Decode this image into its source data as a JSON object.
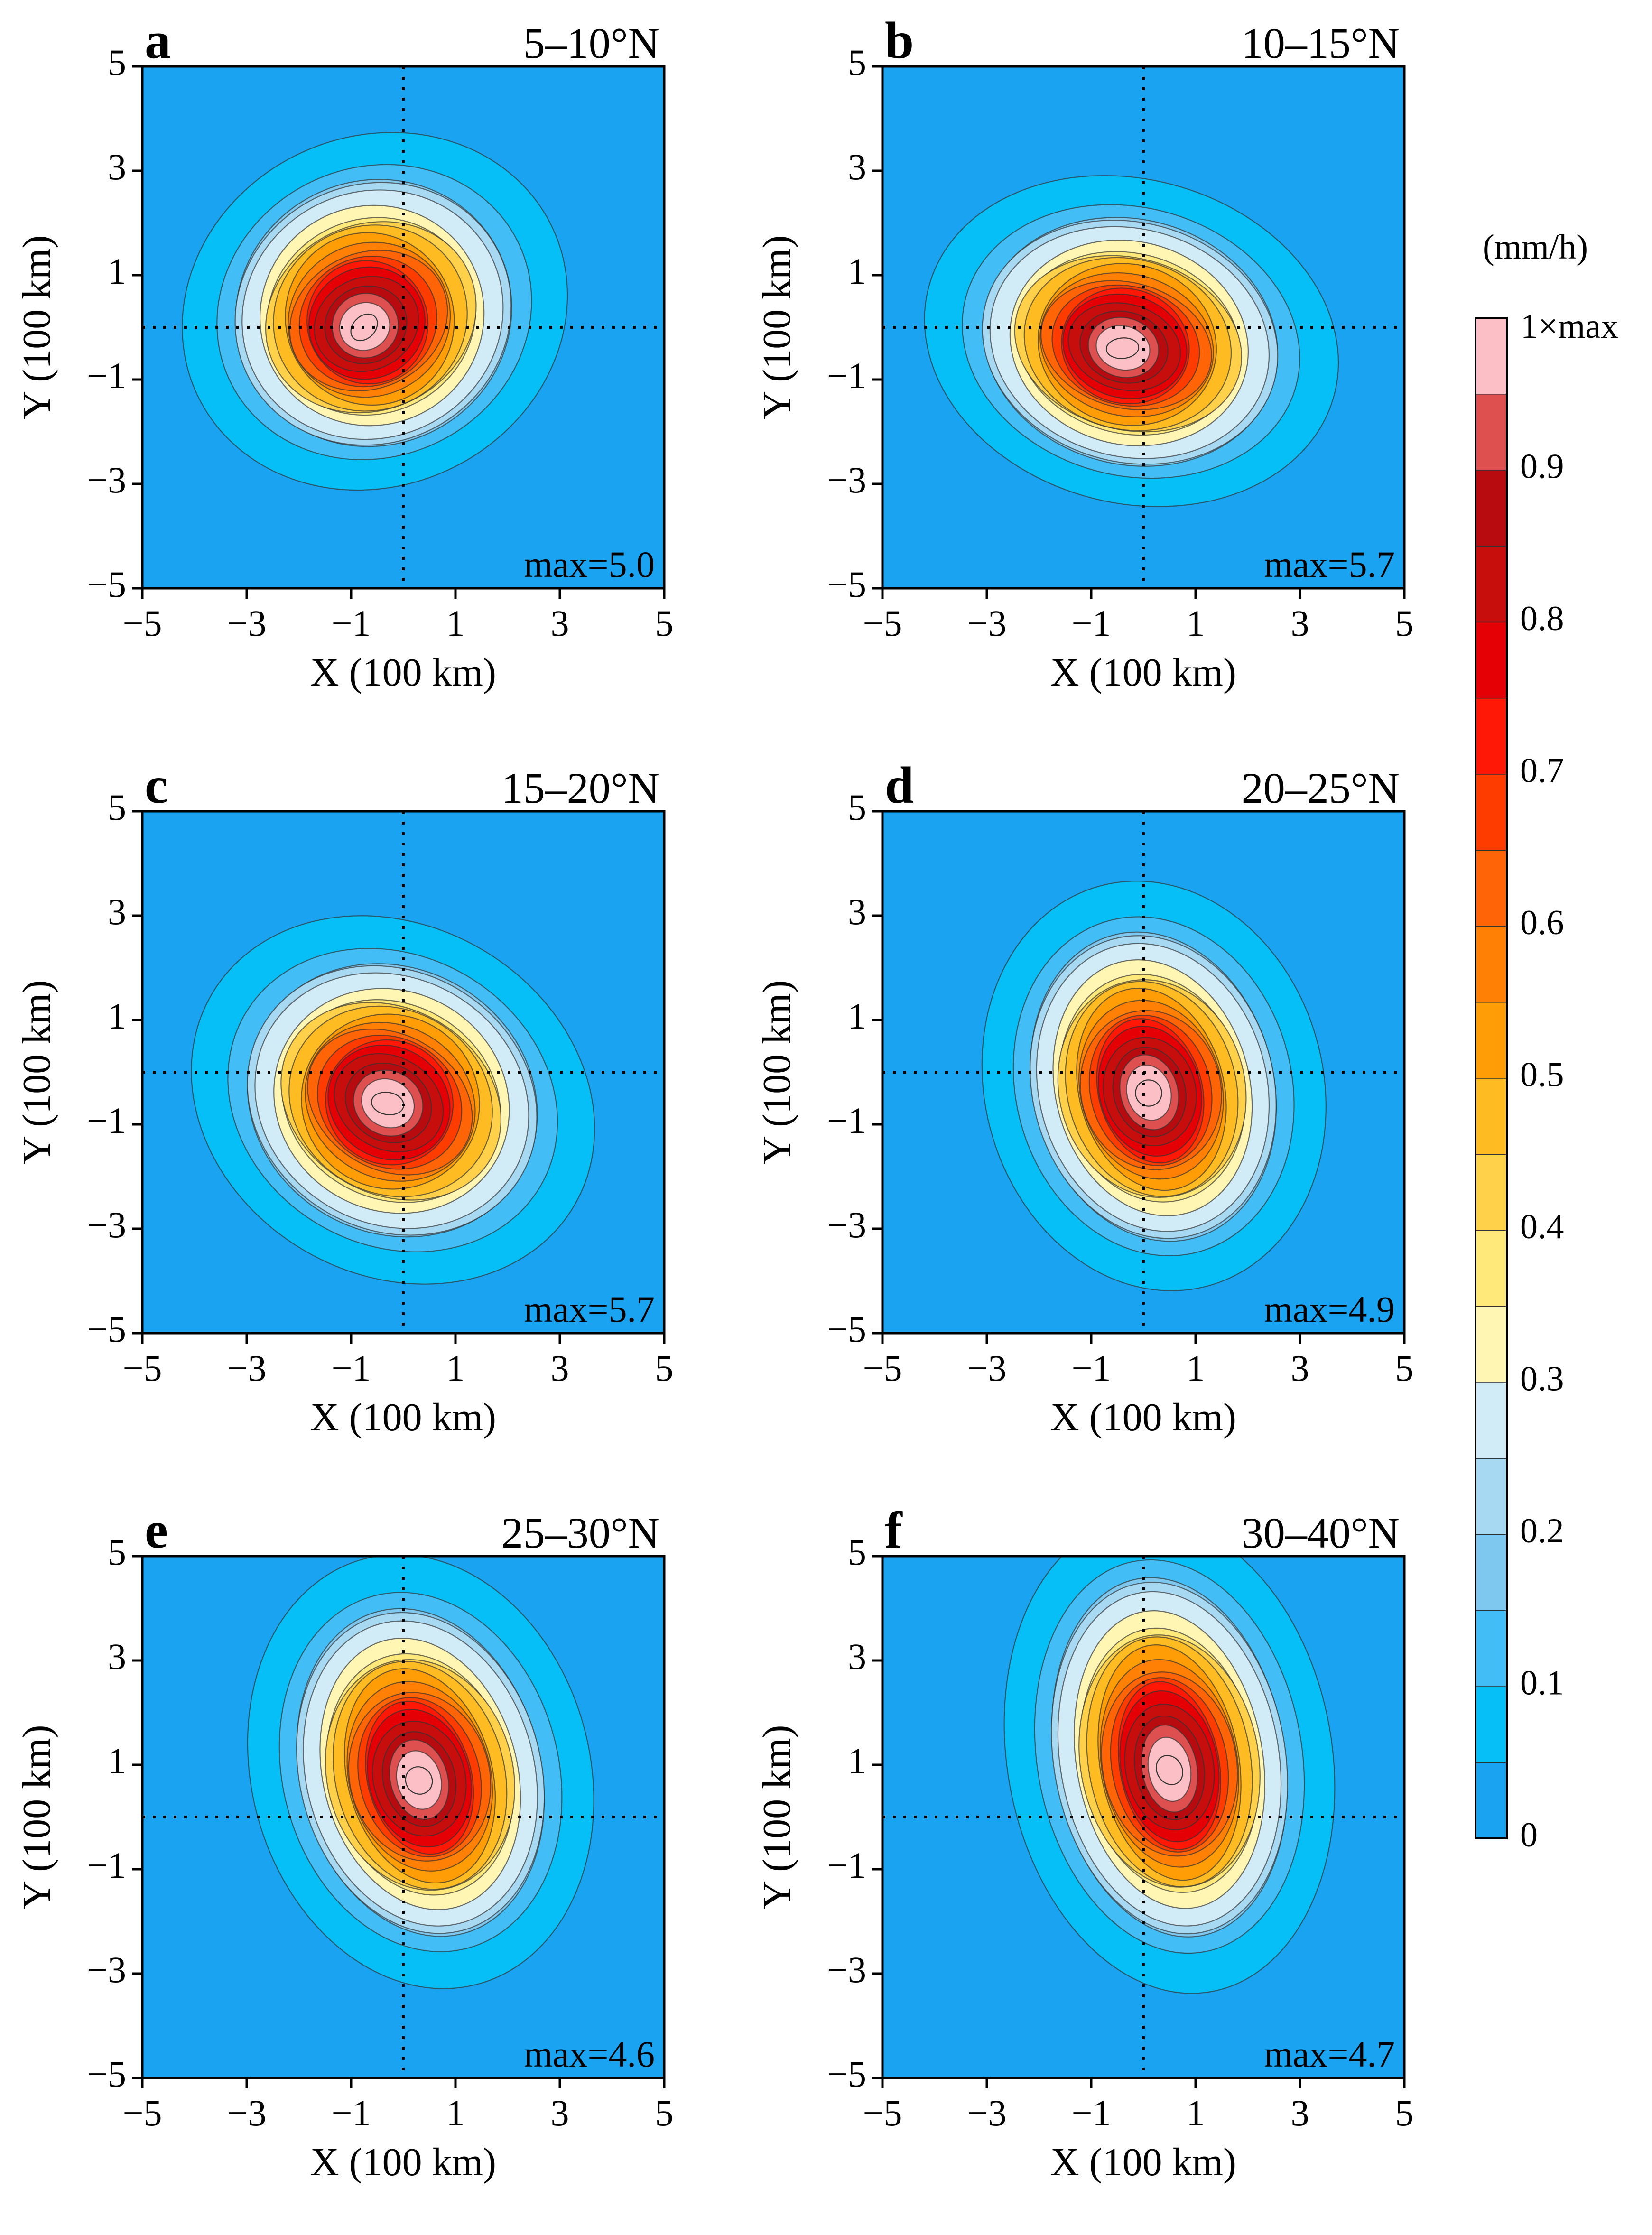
{
  "chart_data": {
    "type": "heatmap",
    "title": "",
    "colorbar": {
      "unit": "(mm/h)",
      "top_label": "1×max",
      "tick_labels": [
        "0",
        "0.1",
        "0.2",
        "0.3",
        "0.4",
        "0.5",
        "0.6",
        "0.7",
        "0.8",
        "0.9"
      ],
      "levels": [
        0,
        0.05,
        0.1,
        0.15,
        0.2,
        0.25,
        0.3,
        0.35,
        0.4,
        0.45,
        0.5,
        0.55,
        0.6,
        0.65,
        0.7,
        0.75,
        0.8,
        0.85,
        0.9,
        0.95,
        1.0
      ],
      "colors": [
        "#1aa3f0",
        "#06bff7",
        "#42bdf5",
        "#7ec8ef",
        "#a8d9f3",
        "#d2ecf7",
        "#fff6b4",
        "#ffe97a",
        "#ffd14a",
        "#ffbb22",
        "#ff9d06",
        "#ff8004",
        "#ff6406",
        "#ff3c00",
        "#ff1806",
        "#e50006",
        "#c80d0d",
        "#b80b10",
        "#de5050",
        "#fcbfc5"
      ]
    },
    "xlabel": "X (100 km)",
    "ylabel": "Y (100 km)",
    "xlim": [
      -5,
      5
    ],
    "ylim": [
      -5,
      5
    ],
    "x_ticks": [
      "−5",
      "−3",
      "−1",
      "1",
      "3",
      "5"
    ],
    "y_ticks": [
      "−5",
      "−3",
      "−1",
      "1",
      "3",
      "5"
    ],
    "tick_values": [
      -5,
      -3,
      -1,
      1,
      3,
      5
    ],
    "panels": [
      {
        "letter": "a",
        "range": "5–10°N",
        "max_label": "max=5.0",
        "max_value": 5.0,
        "center": [
          -0.75,
          0.0
        ],
        "sx": 1.45,
        "sy": 1.35,
        "angle": -25,
        "corner_pull": [
          0.6,
          0.9
        ]
      },
      {
        "letter": "b",
        "range": "10–15°N",
        "max_label": "max=5.7",
        "max_value": 5.7,
        "center": [
          -0.4,
          -0.4
        ],
        "sx": 1.55,
        "sy": 1.25,
        "angle": 15,
        "corner_pull": [
          0.5,
          0.4
        ]
      },
      {
        "letter": "c",
        "range": "15–20°N",
        "max_label": "max=5.7",
        "max_value": 5.7,
        "center": [
          -0.3,
          -0.6
        ],
        "sx": 1.55,
        "sy": 1.35,
        "angle": 30,
        "corner_pull": [
          0.3,
          0.2
        ]
      },
      {
        "letter": "d",
        "range": "20–25°N",
        "max_label": "max=4.9",
        "max_value": 4.9,
        "center": [
          0.1,
          -0.4
        ],
        "sx": 1.25,
        "sy": 1.6,
        "angle": -15,
        "corner_pull": [
          0.3,
          0.4
        ]
      },
      {
        "letter": "e",
        "range": "25–30°N",
        "max_label": "max=4.6",
        "max_value": 4.6,
        "center": [
          0.3,
          0.7
        ],
        "sx": 1.25,
        "sy": 1.7,
        "angle": -15,
        "corner_pull": [
          0.1,
          0.5
        ]
      },
      {
        "letter": "f",
        "range": "30–40°N",
        "max_label": "max=4.7",
        "max_value": 4.7,
        "center": [
          0.5,
          0.9
        ],
        "sx": 1.2,
        "sy": 1.85,
        "angle": -10,
        "corner_pull": [
          0.0,
          0.8
        ]
      }
    ]
  }
}
